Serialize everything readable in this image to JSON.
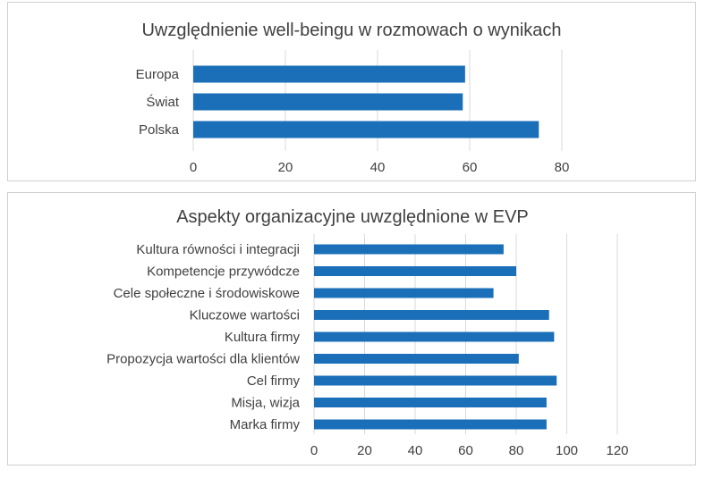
{
  "chart_data": [
    {
      "type": "bar",
      "orientation": "horizontal",
      "title": "Uwzględnienie well-beingu w rozmowach o wynikach",
      "categories": [
        "Europa",
        "Świat",
        "Polska"
      ],
      "values": [
        59,
        58.5,
        75
      ],
      "xlim": [
        0,
        80
      ],
      "ticks": [
        0,
        20,
        40,
        60,
        80
      ],
      "grid": true,
      "color": "#1a6fb8"
    },
    {
      "type": "bar",
      "orientation": "horizontal",
      "title": "Aspekty organizacyjne uwzględnione w EVP",
      "categories": [
        "Kultura równości i integracji",
        "Kompetencje przywódcze",
        "Cele społeczne i środowiskowe",
        "Kluczowe wartości",
        "Kultura firmy",
        "Propozycja wartości dla klientów",
        "Cel firmy",
        "Misja, wizja",
        "Marka firmy"
      ],
      "values": [
        75,
        80,
        71,
        93,
        95,
        81,
        96,
        92,
        92
      ],
      "xlim": [
        0,
        120
      ],
      "ticks": [
        0,
        20,
        40,
        60,
        80,
        100,
        120
      ],
      "grid": true,
      "color": "#1a6fb8"
    }
  ]
}
